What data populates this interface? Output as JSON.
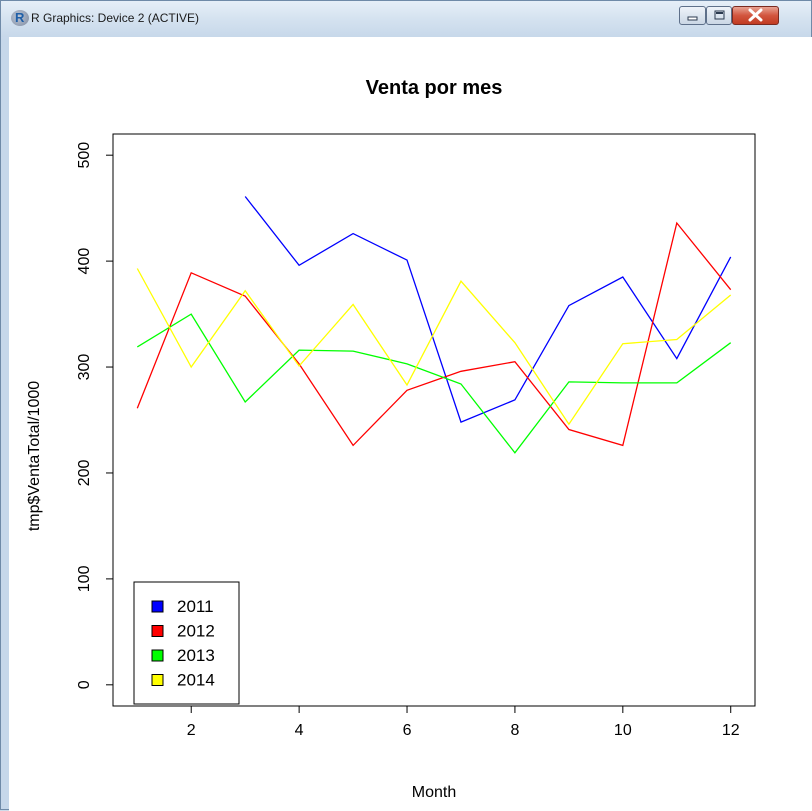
{
  "window": {
    "title": "R Graphics: Device 2 (ACTIVE)",
    "app_icon": "r-logo-icon",
    "controls": [
      "minimize-icon",
      "maximize-icon",
      "close-icon"
    ]
  },
  "colors": {
    "2011": "#0000ff",
    "2012": "#ff0000",
    "2013": "#00ff00",
    "2014": "#ffff00"
  },
  "chart_data": {
    "type": "line",
    "title": "Venta por mes",
    "xlabel": "Month",
    "ylabel": "tmp$VentaTotal/1000",
    "xlim": [
      0.55,
      12.45
    ],
    "ylim": [
      -20,
      520
    ],
    "xticks": [
      2,
      4,
      6,
      8,
      10,
      12
    ],
    "yticks": [
      0,
      100,
      200,
      300,
      400,
      500
    ],
    "grid": false,
    "legend_position": "bottom-left",
    "series": [
      {
        "name": "2011",
        "color": "#0000ff",
        "x": [
          3,
          4,
          5,
          6,
          7,
          8,
          9,
          10,
          11,
          12
        ],
        "y": [
          461,
          396,
          426,
          401,
          248,
          269,
          358,
          385,
          308,
          404
        ]
      },
      {
        "name": "2012",
        "color": "#ff0000",
        "x": [
          1,
          2,
          3,
          4,
          5,
          6,
          7,
          8,
          9,
          10,
          11,
          12
        ],
        "y": [
          261,
          389,
          367,
          303,
          226,
          278,
          296,
          305,
          241,
          226,
          436,
          373
        ]
      },
      {
        "name": "2013",
        "color": "#00ff00",
        "x": [
          1,
          2,
          3,
          4,
          5,
          6,
          7,
          8,
          9,
          10,
          11,
          12
        ],
        "y": [
          319,
          350,
          267,
          316,
          315,
          303,
          284,
          219,
          286,
          285,
          285,
          323
        ]
      },
      {
        "name": "2014",
        "color": "#ffff00",
        "x": [
          1,
          2,
          3,
          4,
          5,
          6,
          7,
          8,
          9,
          10,
          11,
          12
        ],
        "y": [
          393,
          300,
          372,
          301,
          359,
          283,
          381,
          323,
          246,
          322,
          326,
          368
        ]
      }
    ]
  }
}
